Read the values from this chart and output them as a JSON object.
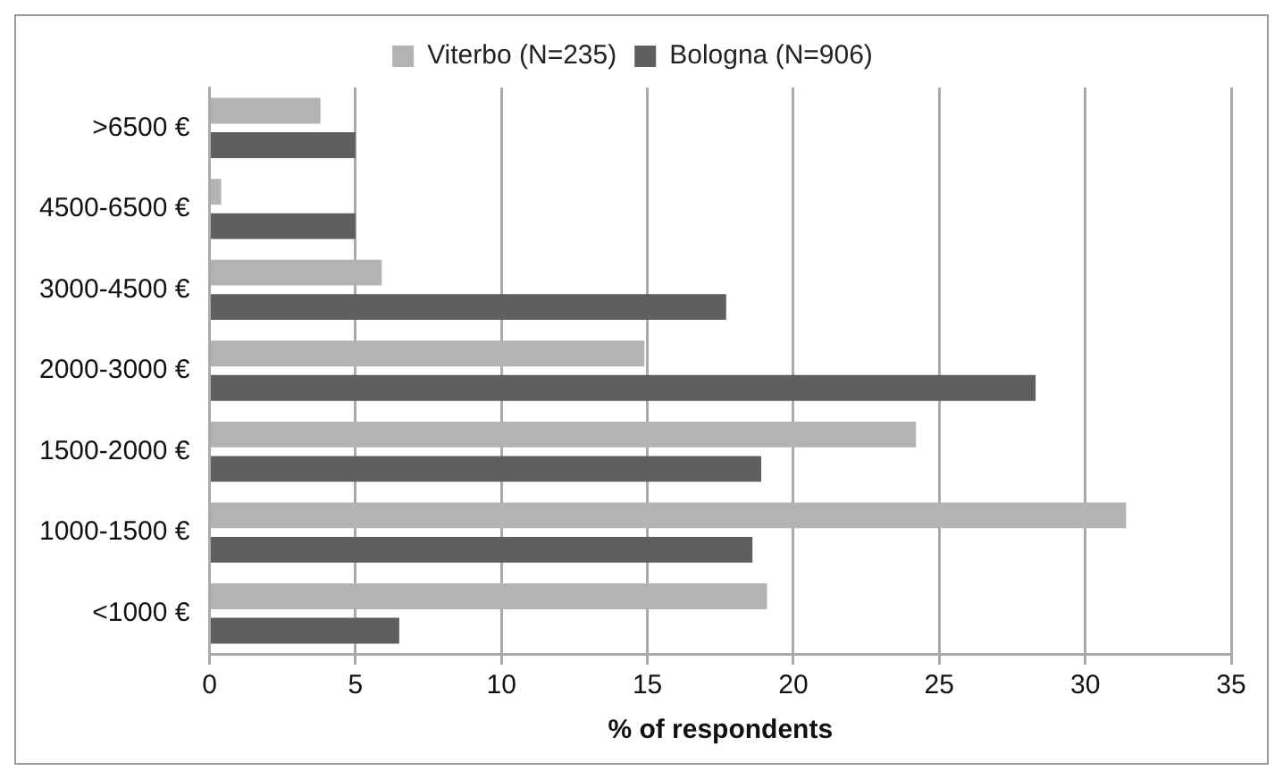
{
  "chart_data": {
    "type": "bar",
    "orientation": "horizontal",
    "xlabel": "% of respondents",
    "categories": [
      ">6500 €",
      "4500-6500 €",
      "3000-4500 €",
      "2000-3000 €",
      "1500-2000 €",
      "1000-1500 €",
      "<1000 €"
    ],
    "series": [
      {
        "name": "Viterbo (N=235)",
        "color": "#b3b3b3",
        "values": [
          3.8,
          0.4,
          5.9,
          14.9,
          24.2,
          31.4,
          19.1
        ]
      },
      {
        "name": "Bologna (N=906)",
        "color": "#5f5f5f",
        "values": [
          5.0,
          5.0,
          17.7,
          28.3,
          18.9,
          18.6,
          6.5
        ]
      }
    ],
    "xlim": [
      0,
      35
    ],
    "xticks": [
      0,
      5,
      10,
      15,
      20,
      25,
      30,
      35
    ],
    "grid": "x",
    "legend": "top"
  }
}
